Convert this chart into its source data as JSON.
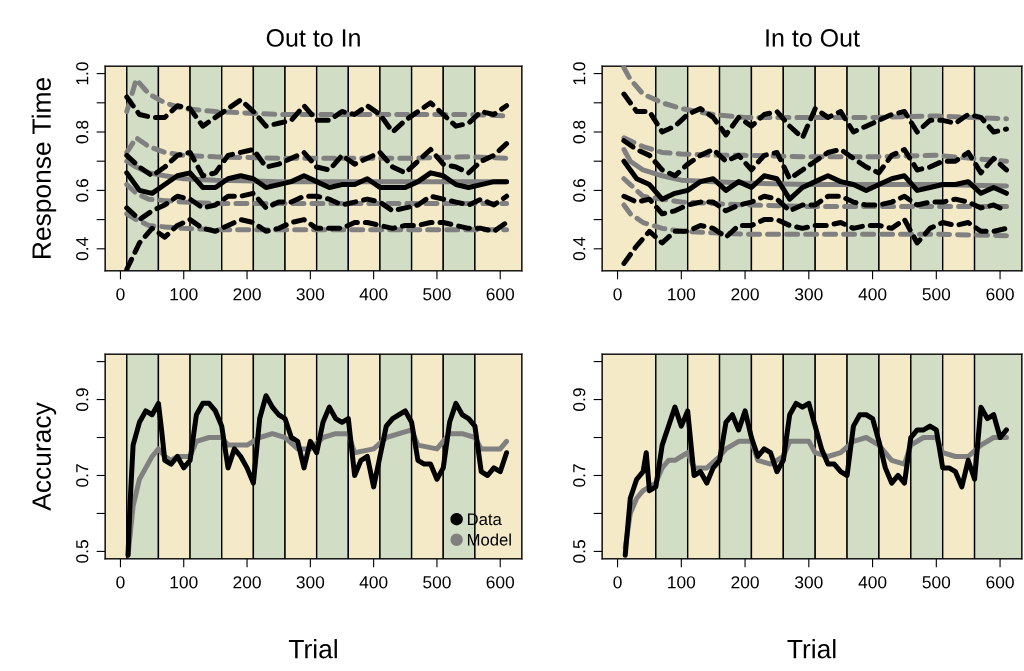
{
  "chart_data": [
    {
      "type": "line",
      "title": "Out to In",
      "ylabel": "Response Time",
      "x": [
        10,
        30,
        50,
        70,
        90,
        110,
        130,
        150,
        170,
        190,
        210,
        230,
        250,
        270,
        290,
        310,
        330,
        350,
        370,
        390,
        410,
        430,
        450,
        470,
        490,
        510,
        530,
        550,
        570,
        590,
        610
      ],
      "xlim": [
        -24.4,
        634.4
      ],
      "xticks": [
        0,
        100,
        200,
        300,
        400,
        500,
        600
      ],
      "ylim": [
        0.324,
        1.026
      ],
      "yticks": [
        0.4,
        {
          "value": 0.5,
          "label": null
        },
        0.6,
        {
          "value": 0.7,
          "label": null
        },
        0.8,
        {
          "value": 0.9,
          "label": null
        },
        {
          "value": 1.0,
          "label": "1.0"
        }
      ],
      "bands": [
        {
          "axis": "x",
          "from": -24.4,
          "to": 10,
          "color": "#f4eac8"
        },
        {
          "axis": "x",
          "from": 10,
          "to": 60,
          "color": "#d1ddc4"
        },
        {
          "axis": "x",
          "from": 60,
          "to": 110,
          "color": "#f4eac8"
        },
        {
          "axis": "x",
          "from": 110,
          "to": 160,
          "color": "#d1ddc4"
        },
        {
          "axis": "x",
          "from": 160,
          "to": 210,
          "color": "#f4eac8"
        },
        {
          "axis": "x",
          "from": 210,
          "to": 260,
          "color": "#d1ddc4"
        },
        {
          "axis": "x",
          "from": 260,
          "to": 310,
          "color": "#f4eac8"
        },
        {
          "axis": "x",
          "from": 310,
          "to": 360,
          "color": "#d1ddc4"
        },
        {
          "axis": "x",
          "from": 360,
          "to": 410,
          "color": "#f4eac8"
        },
        {
          "axis": "x",
          "from": 410,
          "to": 460,
          "color": "#d1ddc4"
        },
        {
          "axis": "x",
          "from": 460,
          "to": 510,
          "color": "#f4eac8"
        },
        {
          "axis": "x",
          "from": 510,
          "to": 560,
          "color": "#d1ddc4"
        },
        {
          "axis": "x",
          "from": 560,
          "to": 634.4,
          "color": "#f4eac8"
        }
      ],
      "series": [
        {
          "color": "#808080",
          "line_style": "dashed",
          "x": [
            10,
            25,
            45,
            70,
            100,
            150,
            250,
            350,
            450,
            550,
            610
          ],
          "values": [
            0.87,
            0.98,
            0.93,
            0.9,
            0.88,
            0.87,
            0.86,
            0.86,
            0.86,
            0.86,
            0.855
          ]
        },
        {
          "color": "#808080",
          "line_style": "dashed",
          "x": [
            10,
            25,
            45,
            70,
            100,
            150,
            250,
            350,
            450,
            550,
            610
          ],
          "values": [
            0.73,
            0.78,
            0.75,
            0.73,
            0.72,
            0.715,
            0.71,
            0.71,
            0.71,
            0.715,
            0.71
          ]
        },
        {
          "color": "#808080",
          "line_style": "solid",
          "x": [
            10,
            25,
            45,
            70,
            100,
            150,
            250,
            350,
            450,
            550,
            610
          ],
          "values": [
            0.7,
            0.68,
            0.66,
            0.65,
            0.64,
            0.635,
            0.63,
            0.63,
            0.63,
            0.63,
            0.63
          ]
        },
        {
          "color": "#808080",
          "line_style": "dashed",
          "x": [
            10,
            25,
            45,
            70,
            100,
            150,
            250,
            350,
            450,
            550,
            610
          ],
          "values": [
            0.62,
            0.59,
            0.57,
            0.565,
            0.56,
            0.555,
            0.555,
            0.555,
            0.555,
            0.555,
            0.555
          ]
        },
        {
          "color": "#808080",
          "line_style": "dashed",
          "x": [
            10,
            25,
            45,
            70,
            100,
            150,
            250,
            350,
            450,
            550,
            610
          ],
          "values": [
            0.52,
            0.5,
            0.48,
            0.475,
            0.47,
            0.465,
            0.465,
            0.465,
            0.465,
            0.465,
            0.465
          ]
        },
        {
          "color": "#000000",
          "line_style": "dashed",
          "values": [
            0.92,
            0.86,
            0.85,
            0.85,
            0.89,
            0.88,
            0.82,
            0.85,
            0.88,
            0.91,
            0.87,
            0.82,
            0.83,
            0.84,
            0.89,
            0.84,
            0.84,
            0.87,
            0.86,
            0.89,
            0.86,
            0.8,
            0.84,
            0.87,
            0.9,
            0.86,
            0.82,
            0.83,
            0.87,
            0.86,
            0.89
          ]
        },
        {
          "color": "#000000",
          "line_style": "dashed",
          "values": [
            0.72,
            0.68,
            0.65,
            0.68,
            0.72,
            0.73,
            0.65,
            0.66,
            0.72,
            0.73,
            0.74,
            0.68,
            0.69,
            0.71,
            0.73,
            0.68,
            0.67,
            0.72,
            0.69,
            0.71,
            0.73,
            0.68,
            0.66,
            0.7,
            0.74,
            0.69,
            0.68,
            0.66,
            0.7,
            0.72,
            0.76
          ]
        },
        {
          "color": "#000000",
          "line_style": "solid",
          "values": [
            0.66,
            0.6,
            0.59,
            0.62,
            0.65,
            0.66,
            0.61,
            0.61,
            0.64,
            0.65,
            0.64,
            0.61,
            0.62,
            0.63,
            0.65,
            0.63,
            0.61,
            0.62,
            0.62,
            0.64,
            0.61,
            0.61,
            0.61,
            0.63,
            0.66,
            0.65,
            0.62,
            0.61,
            0.62,
            0.63,
            0.63
          ]
        },
        {
          "color": "#000000",
          "line_style": "dashed",
          "values": [
            0.54,
            0.5,
            0.53,
            0.55,
            0.58,
            0.57,
            0.54,
            0.55,
            0.58,
            0.58,
            0.59,
            0.54,
            0.56,
            0.56,
            0.58,
            0.58,
            0.57,
            0.55,
            0.56,
            0.57,
            0.56,
            0.53,
            0.54,
            0.55,
            0.58,
            0.57,
            0.56,
            0.55,
            0.57,
            0.55,
            0.58
          ]
        },
        {
          "color": "#000000",
          "line_style": "dashed",
          "values": [
            0.33,
            0.42,
            0.47,
            0.44,
            0.48,
            0.5,
            0.47,
            0.46,
            0.48,
            0.5,
            0.49,
            0.46,
            0.47,
            0.49,
            0.5,
            0.47,
            0.47,
            0.47,
            0.49,
            0.49,
            0.48,
            0.47,
            0.48,
            0.48,
            0.49,
            0.49,
            0.48,
            0.47,
            0.47,
            0.46,
            0.49
          ]
        }
      ]
    },
    {
      "type": "line",
      "title": "In to Out",
      "x": [
        10,
        30,
        50,
        70,
        90,
        110,
        130,
        150,
        170,
        190,
        210,
        230,
        250,
        270,
        290,
        310,
        330,
        350,
        370,
        390,
        410,
        430,
        450,
        470,
        490,
        510,
        530,
        550,
        570,
        590,
        610
      ],
      "xlim": [
        -24.4,
        634.4
      ],
      "xticks": [
        0,
        100,
        200,
        300,
        400,
        500,
        600
      ],
      "ylim": [
        0.324,
        1.026
      ],
      "yticks": [
        0.4,
        {
          "value": 0.5,
          "label": null
        },
        0.6,
        {
          "value": 0.7,
          "label": null
        },
        0.8,
        {
          "value": 0.9,
          "label": null
        },
        {
          "value": 1.0,
          "label": "1.0"
        }
      ],
      "bands": [
        {
          "axis": "x",
          "from": -24.4,
          "to": 60,
          "color": "#f4eac8"
        },
        {
          "axis": "x",
          "from": 60,
          "to": 110,
          "color": "#d1ddc4"
        },
        {
          "axis": "x",
          "from": 110,
          "to": 160,
          "color": "#f4eac8"
        },
        {
          "axis": "x",
          "from": 160,
          "to": 210,
          "color": "#d1ddc4"
        },
        {
          "axis": "x",
          "from": 210,
          "to": 260,
          "color": "#f4eac8"
        },
        {
          "axis": "x",
          "from": 260,
          "to": 310,
          "color": "#d1ddc4"
        },
        {
          "axis": "x",
          "from": 310,
          "to": 360,
          "color": "#f4eac8"
        },
        {
          "axis": "x",
          "from": 360,
          "to": 410,
          "color": "#d1ddc4"
        },
        {
          "axis": "x",
          "from": 410,
          "to": 460,
          "color": "#f4eac8"
        },
        {
          "axis": "x",
          "from": 460,
          "to": 510,
          "color": "#d1ddc4"
        },
        {
          "axis": "x",
          "from": 510,
          "to": 560,
          "color": "#f4eac8"
        },
        {
          "axis": "x",
          "from": 560,
          "to": 634.4,
          "color": "#d1ddc4"
        }
      ],
      "series": [
        {
          "color": "#808080",
          "line_style": "dashed",
          "x": [
            10,
            20,
            40,
            70,
            100,
            150,
            200,
            300,
            400,
            500,
            610
          ],
          "values": [
            1.02,
            0.98,
            0.93,
            0.9,
            0.88,
            0.86,
            0.85,
            0.85,
            0.85,
            0.855,
            0.845
          ]
        },
        {
          "color": "#808080",
          "line_style": "dashed",
          "x": [
            10,
            20,
            40,
            70,
            100,
            150,
            200,
            300,
            400,
            500,
            610
          ],
          "values": [
            0.78,
            0.77,
            0.75,
            0.73,
            0.725,
            0.72,
            0.72,
            0.715,
            0.715,
            0.72,
            0.7
          ]
        },
        {
          "color": "#808080",
          "line_style": "solid",
          "x": [
            10,
            20,
            40,
            70,
            100,
            150,
            200,
            300,
            400,
            500,
            610
          ],
          "values": [
            0.74,
            0.7,
            0.67,
            0.65,
            0.635,
            0.63,
            0.625,
            0.62,
            0.62,
            0.62,
            0.615
          ]
        },
        {
          "color": "#808080",
          "line_style": "dashed",
          "x": [
            10,
            20,
            40,
            70,
            100,
            150,
            200,
            300,
            400,
            500,
            610
          ],
          "values": [
            0.64,
            0.62,
            0.58,
            0.57,
            0.56,
            0.555,
            0.55,
            0.545,
            0.545,
            0.545,
            0.545
          ]
        },
        {
          "color": "#808080",
          "line_style": "dashed",
          "x": [
            10,
            20,
            40,
            70,
            100,
            150,
            200,
            300,
            400,
            500,
            610
          ],
          "values": [
            0.55,
            0.52,
            0.49,
            0.47,
            0.46,
            0.455,
            0.45,
            0.45,
            0.45,
            0.45,
            0.445
          ]
        },
        {
          "color": "#000000",
          "line_style": "dashed",
          "values": [
            0.93,
            0.87,
            0.87,
            0.8,
            0.82,
            0.86,
            0.88,
            0.85,
            0.79,
            0.85,
            0.82,
            0.86,
            0.87,
            0.82,
            0.78,
            0.88,
            0.85,
            0.87,
            0.8,
            0.82,
            0.84,
            0.86,
            0.87,
            0.8,
            0.84,
            0.84,
            0.83,
            0.86,
            0.85,
            0.8,
            0.81
          ]
        },
        {
          "color": "#000000",
          "line_style": "dashed",
          "values": [
            0.77,
            0.74,
            0.72,
            0.67,
            0.65,
            0.69,
            0.72,
            0.74,
            0.7,
            0.72,
            0.67,
            0.72,
            0.73,
            0.64,
            0.67,
            0.7,
            0.73,
            0.74,
            0.71,
            0.68,
            0.66,
            0.72,
            0.74,
            0.67,
            0.68,
            0.7,
            0.7,
            0.73,
            0.66,
            0.71,
            0.67
          ]
        },
        {
          "color": "#000000",
          "line_style": "solid",
          "values": [
            0.7,
            0.64,
            0.62,
            0.57,
            0.59,
            0.6,
            0.63,
            0.64,
            0.6,
            0.63,
            0.61,
            0.65,
            0.64,
            0.57,
            0.61,
            0.63,
            0.65,
            0.63,
            0.62,
            0.6,
            0.62,
            0.64,
            0.65,
            0.6,
            0.61,
            0.62,
            0.62,
            0.63,
            0.59,
            0.61,
            0.59
          ]
        },
        {
          "color": "#000000",
          "line_style": "dashed",
          "values": [
            0.58,
            0.56,
            0.57,
            0.52,
            0.53,
            0.55,
            0.56,
            0.56,
            0.53,
            0.55,
            0.56,
            0.58,
            0.57,
            0.53,
            0.55,
            0.55,
            0.58,
            0.58,
            0.56,
            0.55,
            0.55,
            0.56,
            0.58,
            0.55,
            0.56,
            0.56,
            0.57,
            0.56,
            0.54,
            0.55,
            0.53
          ]
        },
        {
          "color": "#000000",
          "line_style": "dashed",
          "values": [
            0.35,
            0.41,
            0.46,
            0.42,
            0.46,
            0.46,
            0.48,
            0.47,
            0.44,
            0.48,
            0.48,
            0.5,
            0.5,
            0.48,
            0.47,
            0.48,
            0.48,
            0.49,
            0.47,
            0.48,
            0.48,
            0.47,
            0.5,
            0.42,
            0.47,
            0.49,
            0.48,
            0.49,
            0.46,
            0.46,
            0.47
          ]
        }
      ]
    },
    {
      "type": "line",
      "ylabel": "Accuracy",
      "xlabel": "Trial",
      "legend": "bottom right",
      "xlim": [
        -24.4,
        634.4
      ],
      "xticks": [
        0,
        100,
        200,
        300,
        400,
        500,
        600
      ],
      "ylim": [
        0.48,
        1.02
      ],
      "yticks": [
        0.5,
        {
          "value": 0.6,
          "label": null
        },
        0.7,
        {
          "value": 0.8,
          "label": null
        },
        0.9,
        {
          "value": 1.0,
          "label": null
        }
      ],
      "bands": [
        {
          "axis": "x",
          "from": -24.4,
          "to": 10,
          "color": "#f4eac8"
        },
        {
          "axis": "x",
          "from": 10,
          "to": 60,
          "color": "#d1ddc4"
        },
        {
          "axis": "x",
          "from": 60,
          "to": 110,
          "color": "#f4eac8"
        },
        {
          "axis": "x",
          "from": 110,
          "to": 160,
          "color": "#d1ddc4"
        },
        {
          "axis": "x",
          "from": 160,
          "to": 210,
          "color": "#f4eac8"
        },
        {
          "axis": "x",
          "from": 210,
          "to": 260,
          "color": "#d1ddc4"
        },
        {
          "axis": "x",
          "from": 260,
          "to": 310,
          "color": "#f4eac8"
        },
        {
          "axis": "x",
          "from": 310,
          "to": 360,
          "color": "#d1ddc4"
        },
        {
          "axis": "x",
          "from": 360,
          "to": 410,
          "color": "#f4eac8"
        },
        {
          "axis": "x",
          "from": 410,
          "to": 460,
          "color": "#d1ddc4"
        },
        {
          "axis": "x",
          "from": 460,
          "to": 510,
          "color": "#f4eac8"
        },
        {
          "axis": "x",
          "from": 510,
          "to": 560,
          "color": "#d1ddc4"
        },
        {
          "axis": "x",
          "from": 560,
          "to": 634.4,
          "color": "#f4eac8"
        }
      ],
      "series": [
        {
          "name": "Model",
          "color": "#808080",
          "line_style": "solid",
          "x": [
            12,
            20,
            30,
            40,
            50,
            60,
            70,
            80,
            90,
            100,
            110,
            120,
            140,
            160,
            170,
            200,
            220,
            240,
            260,
            280,
            300,
            320,
            340,
            360,
            370,
            400,
            420,
            440,
            460,
            470,
            500,
            520,
            540,
            560,
            570,
            600,
            610
          ],
          "values": [
            0.49,
            0.62,
            0.69,
            0.72,
            0.75,
            0.77,
            0.75,
            0.74,
            0.75,
            0.75,
            0.75,
            0.79,
            0.8,
            0.8,
            0.78,
            0.78,
            0.8,
            0.81,
            0.8,
            0.77,
            0.77,
            0.8,
            0.81,
            0.81,
            0.76,
            0.77,
            0.8,
            0.81,
            0.82,
            0.78,
            0.77,
            0.81,
            0.81,
            0.8,
            0.77,
            0.77,
            0.79
          ]
        },
        {
          "name": "Data",
          "color": "#000000",
          "line_style": "solid",
          "x": [
            12,
            15,
            20,
            30,
            40,
            50,
            60,
            65,
            70,
            80,
            90,
            100,
            110,
            120,
            130,
            140,
            150,
            160,
            170,
            180,
            190,
            200,
            210,
            220,
            230,
            240,
            250,
            260,
            270,
            280,
            290,
            300,
            310,
            320,
            330,
            340,
            350,
            360,
            370,
            380,
            390,
            400,
            410,
            420,
            430,
            440,
            450,
            460,
            470,
            480,
            490,
            500,
            510,
            520,
            530,
            540,
            550,
            560,
            570,
            580,
            590,
            600,
            610
          ],
          "values": [
            0.49,
            0.62,
            0.78,
            0.84,
            0.87,
            0.86,
            0.89,
            0.82,
            0.74,
            0.73,
            0.75,
            0.72,
            0.74,
            0.86,
            0.89,
            0.89,
            0.87,
            0.83,
            0.72,
            0.77,
            0.75,
            0.72,
            0.68,
            0.85,
            0.91,
            0.88,
            0.86,
            0.85,
            0.8,
            0.79,
            0.72,
            0.79,
            0.76,
            0.84,
            0.88,
            0.85,
            0.84,
            0.85,
            0.7,
            0.74,
            0.75,
            0.67,
            0.75,
            0.83,
            0.85,
            0.86,
            0.87,
            0.84,
            0.74,
            0.73,
            0.73,
            0.69,
            0.72,
            0.84,
            0.89,
            0.86,
            0.85,
            0.83,
            0.71,
            0.7,
            0.72,
            0.71,
            0.76
          ]
        }
      ]
    },
    {
      "type": "line",
      "xlabel": "Trial",
      "xlim": [
        -24.4,
        634.4
      ],
      "xticks": [
        0,
        100,
        200,
        300,
        400,
        500,
        600
      ],
      "ylim": [
        0.48,
        1.02
      ],
      "yticks": [
        0.5,
        {
          "value": 0.6,
          "label": null
        },
        0.7,
        {
          "value": 0.8,
          "label": null
        },
        0.9,
        {
          "value": 1.0,
          "label": null
        }
      ],
      "bands": [
        {
          "axis": "x",
          "from": -24.4,
          "to": 60,
          "color": "#f4eac8"
        },
        {
          "axis": "x",
          "from": 60,
          "to": 110,
          "color": "#d1ddc4"
        },
        {
          "axis": "x",
          "from": 110,
          "to": 160,
          "color": "#f4eac8"
        },
        {
          "axis": "x",
          "from": 160,
          "to": 210,
          "color": "#d1ddc4"
        },
        {
          "axis": "x",
          "from": 210,
          "to": 260,
          "color": "#f4eac8"
        },
        {
          "axis": "x",
          "from": 260,
          "to": 310,
          "color": "#d1ddc4"
        },
        {
          "axis": "x",
          "from": 310,
          "to": 360,
          "color": "#f4eac8"
        },
        {
          "axis": "x",
          "from": 360,
          "to": 410,
          "color": "#d1ddc4"
        },
        {
          "axis": "x",
          "from": 410,
          "to": 460,
          "color": "#f4eac8"
        },
        {
          "axis": "x",
          "from": 460,
          "to": 510,
          "color": "#d1ddc4"
        },
        {
          "axis": "x",
          "from": 510,
          "to": 560,
          "color": "#f4eac8"
        },
        {
          "axis": "x",
          "from": 560,
          "to": 634.4,
          "color": "#d1ddc4"
        }
      ],
      "series": [
        {
          "color": "#808080",
          "line_style": "solid",
          "x": [
            12,
            20,
            30,
            40,
            50,
            60,
            70,
            80,
            90,
            100,
            110,
            120,
            140,
            160,
            170,
            190,
            210,
            220,
            240,
            260,
            270,
            300,
            310,
            330,
            350,
            370,
            390,
            410,
            430,
            450,
            460,
            480,
            500,
            510,
            530,
            550,
            570,
            590,
            610
          ],
          "values": [
            0.51,
            0.6,
            0.64,
            0.66,
            0.67,
            0.68,
            0.72,
            0.74,
            0.74,
            0.75,
            0.76,
            0.72,
            0.72,
            0.75,
            0.77,
            0.79,
            0.79,
            0.74,
            0.73,
            0.75,
            0.79,
            0.79,
            0.76,
            0.75,
            0.76,
            0.79,
            0.8,
            0.78,
            0.74,
            0.73,
            0.78,
            0.8,
            0.8,
            0.76,
            0.75,
            0.75,
            0.78,
            0.8,
            0.8
          ]
        },
        {
          "color": "#000000",
          "line_style": "solid",
          "x": [
            12,
            20,
            30,
            40,
            45,
            50,
            60,
            70,
            80,
            90,
            100,
            110,
            120,
            130,
            140,
            150,
            160,
            170,
            180,
            190,
            200,
            210,
            220,
            230,
            240,
            250,
            260,
            270,
            280,
            290,
            300,
            310,
            320,
            330,
            340,
            350,
            360,
            370,
            380,
            390,
            400,
            410,
            420,
            430,
            440,
            450,
            460,
            470,
            480,
            490,
            500,
            510,
            520,
            530,
            540,
            550,
            560,
            570,
            580,
            590,
            600,
            610
          ],
          "values": [
            0.49,
            0.64,
            0.69,
            0.71,
            0.76,
            0.66,
            0.67,
            0.78,
            0.83,
            0.88,
            0.83,
            0.87,
            0.7,
            0.71,
            0.68,
            0.72,
            0.74,
            0.84,
            0.86,
            0.82,
            0.87,
            0.8,
            0.75,
            0.77,
            0.76,
            0.71,
            0.74,
            0.86,
            0.89,
            0.88,
            0.89,
            0.83,
            0.77,
            0.73,
            0.73,
            0.71,
            0.7,
            0.83,
            0.86,
            0.86,
            0.85,
            0.79,
            0.72,
            0.68,
            0.7,
            0.68,
            0.8,
            0.82,
            0.82,
            0.83,
            0.82,
            0.72,
            0.72,
            0.71,
            0.67,
            0.74,
            0.69,
            0.88,
            0.85,
            0.86,
            0.8,
            0.82
          ]
        }
      ]
    }
  ]
}
